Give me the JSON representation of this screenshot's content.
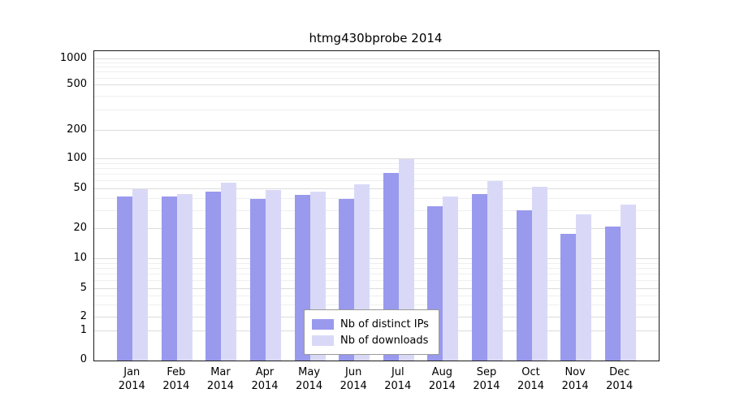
{
  "chart_data": {
    "type": "bar",
    "title": "htmg430bprobe 2014",
    "categories": [
      "Jan",
      "Feb",
      "Mar",
      "Apr",
      "May",
      "Jun",
      "Jul",
      "Aug",
      "Sep",
      "Oct",
      "Nov",
      "Dec"
    ],
    "year_label": "2014",
    "series": [
      {
        "name": "Nb of distinct IPs",
        "color": "#9999ee",
        "values": [
          42,
          42,
          47,
          40,
          44,
          40,
          73,
          34,
          45,
          31,
          18,
          21
        ]
      },
      {
        "name": "Nb of downloads",
        "color": "#d9d9f7",
        "values": [
          50,
          45,
          58,
          49,
          47,
          56,
          100,
          42,
          60,
          53,
          28,
          35
        ]
      }
    ],
    "yticks": [
      0,
      1,
      2,
      5,
      10,
      20,
      50,
      100,
      200,
      500,
      1000
    ],
    "ylim": [
      0,
      1200
    ],
    "yscale": "symlog",
    "grid": "on",
    "legend_position": "bottom-center"
  }
}
